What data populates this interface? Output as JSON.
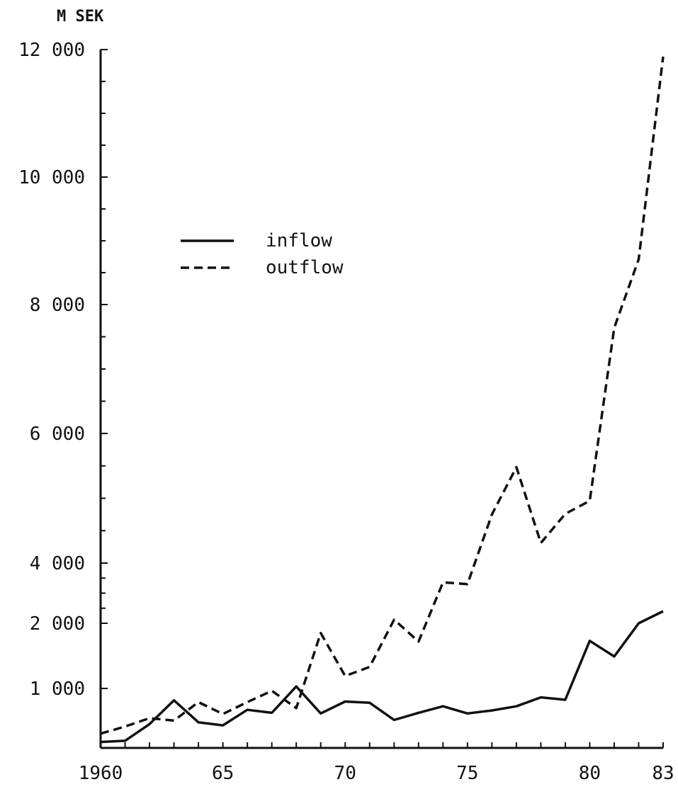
{
  "chart_data": {
    "type": "line",
    "title": "",
    "ylabel": "M SEK",
    "xlabel": "",
    "x": [
      1960,
      1961,
      1962,
      1963,
      1964,
      1965,
      1966,
      1967,
      1968,
      1969,
      1970,
      1971,
      1972,
      1973,
      1974,
      1975,
      1976,
      1977,
      1978,
      1979,
      1980,
      1981,
      1982,
      1983
    ],
    "series": [
      {
        "name": "inflow",
        "style": "solid",
        "values": [
          100,
          120,
          400,
          800,
          430,
          380,
          640,
          590,
          1030,
          580,
          780,
          760,
          470,
          590,
          700,
          580,
          630,
          700,
          850,
          810,
          1730,
          1490,
          2000,
          2400
        ]
      },
      {
        "name": "outflow",
        "style": "dashed",
        "values": [
          240,
          360,
          500,
          460,
          770,
          570,
          770,
          960,
          670,
          1850,
          1190,
          1330,
          2120,
          1720,
          3360,
          3300,
          4750,
          5480,
          4310,
          4760,
          4960,
          7640,
          8710,
          11890
        ]
      }
    ],
    "y_ticks": [
      {
        "value": 1000,
        "label": "1 000"
      },
      {
        "value": 2000,
        "label": "2 000"
      },
      {
        "value": 4000,
        "label": "4 000"
      },
      {
        "value": 6000,
        "label": "6 000"
      },
      {
        "value": 8000,
        "label": "8 000"
      },
      {
        "value": 10000,
        "label": "10 000"
      },
      {
        "value": 12000,
        "label": "12 000"
      }
    ],
    "x_ticks": [
      {
        "value": 1960,
        "label": "1960"
      },
      {
        "value": 1965,
        "label": "65"
      },
      {
        "value": 1970,
        "label": "70"
      },
      {
        "value": 1975,
        "label": "75"
      },
      {
        "value": 1980,
        "label": "80"
      },
      {
        "value": 1983,
        "label": "83"
      }
    ],
    "xlim": [
      1960,
      1983
    ],
    "ylim": [
      0,
      12000
    ],
    "y_scale": "piecewise-linear (0–2 000 stretched)",
    "grid": false,
    "legend_position": "upper-left",
    "colors": {
      "line": "#111111",
      "background": "#ffffff"
    }
  }
}
